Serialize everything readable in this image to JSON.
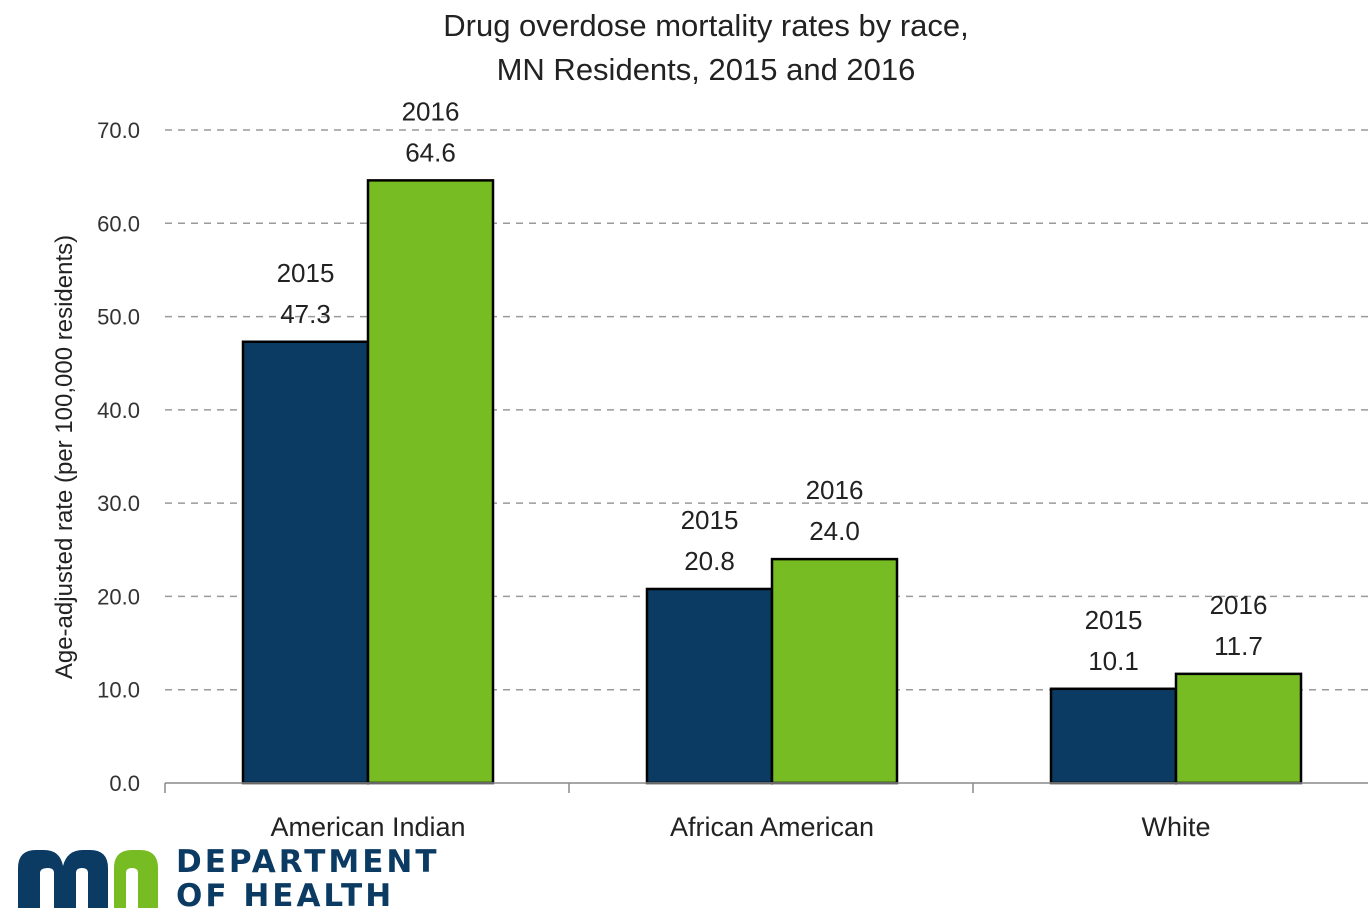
{
  "chart_data": {
    "type": "bar",
    "title": [
      "Drug overdose mortality rates by race,",
      "MN Residents, 2015 and 2016"
    ],
    "xlabel": "",
    "ylabel": "Age-adjusted rate (per 100,000 residents)",
    "ylim": [
      0,
      70
    ],
    "yticks": [
      "0.0",
      "10.0",
      "20.0",
      "30.0",
      "40.0",
      "50.0",
      "60.0",
      "70.0"
    ],
    "grid": "dashed horizontal",
    "legend": "none (year printed above each bar)",
    "categories": [
      "American Indian",
      "African American",
      "White"
    ],
    "series": [
      {
        "name": "2015",
        "color": "#0b3a63",
        "values": [
          47.3,
          20.8,
          10.1
        ],
        "labels": [
          "47.3",
          "20.8",
          "10.1"
        ]
      },
      {
        "name": "2016",
        "color": "#78bc24",
        "values": [
          64.6,
          24.0,
          11.7
        ],
        "labels": [
          "64.6",
          "24.0",
          "11.7"
        ]
      }
    ]
  },
  "logo": {
    "line1": "DEPARTMENT",
    "line2": "OF HEALTH",
    "mark_text": "mn",
    "colors": {
      "navy": "#0b3a63",
      "green": "#78bc24"
    }
  }
}
